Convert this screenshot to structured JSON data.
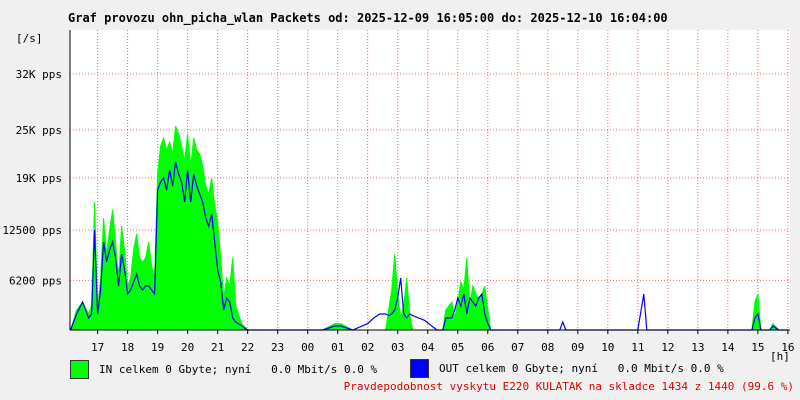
{
  "title": "Graf provozu ohn_picha_wlan Packets od: 2025-12-09 16:05:00 do: 2025-12-10 16:04:00",
  "colors": {
    "in": "#00ff00",
    "out": "#0000ff",
    "footer": "#e00000",
    "grid": "#ff0000"
  },
  "legend": {
    "in_text": "IN celkem 0 Gbyte; nyní   0.0 Mbit/s 0.0 %",
    "out_text": "OUT celkem 0 Gbyte; nyní   0.0 Mbit/s 0.0 %"
  },
  "footer_note": "Pravdepodobnost vyskytu E220 KULATAK na skladce 1434 z 1440 (99.6 %)",
  "chart_data": {
    "type": "area",
    "title": "Graf provozu ohn_picha_wlan Packets od: 2025-12-09 16:05:00 do: 2025-12-10 16:04:00",
    "ylabel": "[/s]",
    "xlabel": "[h]",
    "ylim": [
      0,
      37500
    ],
    "xlim": [
      16.08,
      40.07
    ],
    "y_ticks": [
      {
        "value": 6200,
        "label": "6200 pps"
      },
      {
        "value": 12500,
        "label": "12500 pps"
      },
      {
        "value": 19000,
        "label": "19K pps"
      },
      {
        "value": 25000,
        "label": "25K pps"
      },
      {
        "value": 32000,
        "label": "32K pps"
      }
    ],
    "x_ticks": [
      {
        "value": 17,
        "label": "17"
      },
      {
        "value": 18,
        "label": "18"
      },
      {
        "value": 19,
        "label": "19"
      },
      {
        "value": 20,
        "label": "20"
      },
      {
        "value": 21,
        "label": "21"
      },
      {
        "value": 22,
        "label": "22"
      },
      {
        "value": 23,
        "label": "23"
      },
      {
        "value": 24,
        "label": "00"
      },
      {
        "value": 25,
        "label": "01"
      },
      {
        "value": 26,
        "label": "02"
      },
      {
        "value": 27,
        "label": "03"
      },
      {
        "value": 28,
        "label": "04"
      },
      {
        "value": 29,
        "label": "05"
      },
      {
        "value": 30,
        "label": "06"
      },
      {
        "value": 31,
        "label": "07"
      },
      {
        "value": 32,
        "label": "08"
      },
      {
        "value": 33,
        "label": "09"
      },
      {
        "value": 34,
        "label": "10"
      },
      {
        "value": 35,
        "label": "11"
      },
      {
        "value": 36,
        "label": "12"
      },
      {
        "value": 37,
        "label": "13"
      },
      {
        "value": 38,
        "label": "14"
      },
      {
        "value": 39,
        "label": "15"
      },
      {
        "value": 40,
        "label": "16"
      }
    ],
    "grid": true,
    "series": [
      {
        "name": "IN",
        "color": "#00ff00",
        "x": [
          16.1,
          16.3,
          16.5,
          16.7,
          16.8,
          16.9,
          17.0,
          17.1,
          17.2,
          17.3,
          17.4,
          17.5,
          17.6,
          17.7,
          17.8,
          17.9,
          18.0,
          18.1,
          18.2,
          18.3,
          18.4,
          18.5,
          18.6,
          18.7,
          18.8,
          18.9,
          19.0,
          19.1,
          19.2,
          19.3,
          19.4,
          19.5,
          19.6,
          19.7,
          19.8,
          19.9,
          20.0,
          20.1,
          20.2,
          20.3,
          20.4,
          20.5,
          20.6,
          20.7,
          20.8,
          20.9,
          21.0,
          21.1,
          21.2,
          21.3,
          21.4,
          21.5,
          21.6,
          21.8,
          22.0,
          24.5,
          24.9,
          25.1,
          25.5,
          26.0,
          26.4,
          26.6,
          26.7,
          26.8,
          26.9,
          27.0,
          27.1,
          27.2,
          27.3,
          27.4,
          27.5,
          27.7,
          27.9,
          28.3,
          28.5,
          28.6,
          28.8,
          28.9,
          29.0,
          29.1,
          29.2,
          29.3,
          29.4,
          29.5,
          29.6,
          29.7,
          29.8,
          29.9,
          30.0,
          30.1,
          30.3,
          30.5,
          31.0,
          32.4,
          33.0,
          34.0,
          35.0,
          35.2,
          35.3,
          38.7,
          38.8,
          38.9,
          39.0,
          39.1,
          39.4,
          39.5,
          39.7,
          40.0
        ],
        "values": [
          0,
          2500,
          3500,
          2000,
          3000,
          16000,
          2500,
          6500,
          14000,
          9500,
          12500,
          15000,
          11000,
          6500,
          13000,
          10000,
          5500,
          6500,
          10000,
          12000,
          9000,
          8500,
          9000,
          11000,
          8000,
          6500,
          19500,
          23000,
          24000,
          22500,
          23500,
          22000,
          25500,
          24500,
          23000,
          21000,
          24500,
          20500,
          24000,
          22500,
          22000,
          20500,
          18000,
          17000,
          19000,
          15500,
          13500,
          9000,
          4000,
          6500,
          5500,
          9000,
          3000,
          800,
          0,
          0,
          800,
          800,
          0,
          0,
          0,
          0,
          2500,
          5000,
          9500,
          4500,
          1500,
          3000,
          6500,
          2000,
          0,
          0,
          0,
          0,
          0,
          2500,
          3500,
          1500,
          3500,
          6000,
          5000,
          9000,
          3000,
          5500,
          4500,
          4000,
          4500,
          5500,
          2500,
          0,
          0,
          0,
          0,
          0,
          0,
          0,
          0,
          0,
          0,
          0,
          0,
          3500,
          4500,
          0,
          0,
          800,
          0,
          0
        ]
      },
      {
        "name": "OUT",
        "color": "#0000ff",
        "x": [
          16.1,
          16.3,
          16.5,
          16.7,
          16.8,
          16.9,
          17.0,
          17.1,
          17.2,
          17.3,
          17.4,
          17.5,
          17.6,
          17.7,
          17.8,
          17.9,
          18.0,
          18.1,
          18.2,
          18.3,
          18.4,
          18.5,
          18.6,
          18.7,
          18.8,
          18.9,
          19.0,
          19.1,
          19.2,
          19.3,
          19.4,
          19.5,
          19.6,
          19.7,
          19.8,
          19.9,
          20.0,
          20.1,
          20.2,
          20.3,
          20.4,
          20.5,
          20.6,
          20.7,
          20.8,
          20.9,
          21.0,
          21.1,
          21.2,
          21.3,
          21.4,
          21.5,
          21.6,
          21.8,
          22.0,
          24.5,
          24.9,
          25.1,
          25.5,
          26.0,
          26.2,
          26.4,
          26.6,
          26.7,
          26.8,
          26.9,
          27.0,
          27.1,
          27.2,
          27.3,
          27.4,
          27.5,
          27.7,
          27.9,
          28.3,
          28.5,
          28.6,
          28.8,
          28.9,
          29.0,
          29.1,
          29.2,
          29.3,
          29.4,
          29.5,
          29.6,
          29.7,
          29.8,
          29.9,
          30.0,
          30.1,
          30.3,
          30.5,
          31.0,
          32.4,
          32.5,
          32.6,
          33.0,
          34.0,
          35.0,
          35.2,
          35.3,
          35.4,
          38.7,
          38.8,
          38.9,
          39.0,
          39.1,
          39.4,
          39.5,
          39.7,
          40.0
        ],
        "values": [
          0,
          2000,
          3500,
          1500,
          2000,
          12500,
          2000,
          5000,
          11000,
          8500,
          10000,
          11000,
          9000,
          5500,
          9500,
          7500,
          4500,
          5000,
          6000,
          7000,
          5500,
          5000,
          5500,
          5500,
          5000,
          4500,
          17500,
          18500,
          19000,
          17500,
          20000,
          18000,
          21000,
          19500,
          18500,
          16000,
          20000,
          16000,
          19500,
          18000,
          17000,
          16000,
          14000,
          13000,
          14500,
          11000,
          7500,
          6000,
          2500,
          4000,
          3500,
          1500,
          1000,
          500,
          0,
          0,
          500,
          500,
          0,
          800,
          1500,
          2000,
          2000,
          1800,
          2000,
          2500,
          4000,
          6500,
          2000,
          1500,
          2000,
          1800,
          1500,
          1200,
          0,
          0,
          1500,
          1500,
          2500,
          4000,
          3000,
          4500,
          2000,
          4000,
          3500,
          3000,
          4000,
          4500,
          2000,
          800,
          0,
          0,
          0,
          0,
          0,
          1000,
          0,
          0,
          0,
          0,
          4500,
          0,
          0,
          0,
          0,
          1500,
          2000,
          0,
          0,
          500,
          0,
          0
        ]
      }
    ]
  }
}
